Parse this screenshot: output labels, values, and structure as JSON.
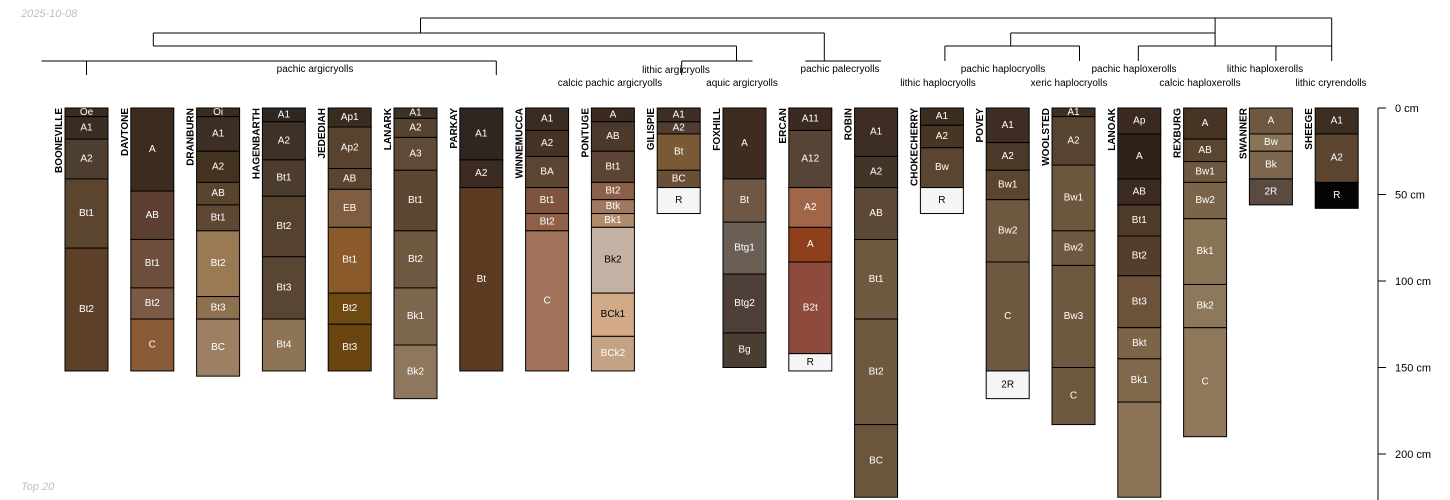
{
  "header": {
    "date": "2025-10-08"
  },
  "footer": {
    "label": "Top 20"
  },
  "depth_axis": [
    {
      "label": "0 cm",
      "depth": 0
    },
    {
      "label": "50 cm",
      "depth": 50
    },
    {
      "label": "100 cm",
      "depth": 100
    },
    {
      "label": "150 cm",
      "depth": 150
    },
    {
      "label": "200 cm",
      "depth": 200
    }
  ],
  "groups": [
    {
      "label": "pachic argicryolls",
      "first": 0,
      "last": 5
    },
    {
      "label": "calcic pachic argicryolls",
      "first": 6,
      "last": 8
    },
    {
      "label": "lithic argicryolls",
      "first": 9,
      "last": 9
    },
    {
      "label": "aquic argicryolls",
      "first": 10,
      "last": 10
    },
    {
      "label": "pachic palecryolls",
      "first": 11,
      "last": 12
    },
    {
      "label": "lithic haplocryolls",
      "first": 13,
      "last": 13
    },
    {
      "label": "pachic haplocryolls",
      "first": 14,
      "last": 14
    },
    {
      "label": "xeric haplocryolls",
      "first": 15,
      "last": 15
    },
    {
      "label": "pachic haploxerolls",
      "first": 16,
      "last": 16
    },
    {
      "label": "calcic haploxerolls",
      "first": 17,
      "last": 17
    },
    {
      "label": "lithic haploxerolls",
      "first": 18,
      "last": 18
    },
    {
      "label": "lithic cryrendolls",
      "first": 19,
      "last": 19
    }
  ],
  "profiles": [
    {
      "name": "BOONEVILLE",
      "horizons": [
        {
          "name": "Oe",
          "top": 0,
          "bottom": 5,
          "color": "#3a2b20"
        },
        {
          "name": "A1",
          "top": 5,
          "bottom": 18,
          "color": "#3b2d22"
        },
        {
          "name": "A2",
          "top": 18,
          "bottom": 41,
          "color": "#4d3e30"
        },
        {
          "name": "Bt1",
          "top": 41,
          "bottom": 81,
          "color": "#5b452e"
        },
        {
          "name": "Bt2",
          "top": 81,
          "bottom": 152,
          "color": "#5e3f28"
        }
      ]
    },
    {
      "name": "DAVTONE",
      "horizons": [
        {
          "name": "A",
          "top": 0,
          "bottom": 48,
          "color": "#3d2b1f"
        },
        {
          "name": "AB",
          "top": 48,
          "bottom": 76,
          "color": "#5c3f31"
        },
        {
          "name": "Bt1",
          "top": 76,
          "bottom": 104,
          "color": "#6e4e3c"
        },
        {
          "name": "Bt2",
          "top": 104,
          "bottom": 122,
          "color": "#7a5a45"
        },
        {
          "name": "C",
          "top": 122,
          "bottom": 152,
          "color": "#8b5a36"
        }
      ]
    },
    {
      "name": "DRANBURN",
      "horizons": [
        {
          "name": "Oi",
          "top": 0,
          "bottom": 5,
          "color": "#3b2c21"
        },
        {
          "name": "A1",
          "top": 5,
          "bottom": 25,
          "color": "#3d2f24"
        },
        {
          "name": "A2",
          "top": 25,
          "bottom": 43,
          "color": "#43321f"
        },
        {
          "name": "AB",
          "top": 43,
          "bottom": 56,
          "color": "#59452e"
        },
        {
          "name": "Bt1",
          "top": 56,
          "bottom": 71,
          "color": "#5e4831"
        },
        {
          "name": "Bt2",
          "top": 71,
          "bottom": 109,
          "color": "#9a7a55"
        },
        {
          "name": "Bt3",
          "top": 109,
          "bottom": 122,
          "color": "#8c7050"
        },
        {
          "name": "BC",
          "top": 122,
          "bottom": 155,
          "color": "#9d8064"
        }
      ]
    },
    {
      "name": "HAGENBARTH",
      "horizons": [
        {
          "name": "A1",
          "top": 0,
          "bottom": 8,
          "color": "#2f2722"
        },
        {
          "name": "A2",
          "top": 8,
          "bottom": 30,
          "color": "#3d3128"
        },
        {
          "name": "Bt1",
          "top": 30,
          "bottom": 51,
          "color": "#4c3d2e"
        },
        {
          "name": "Bt2",
          "top": 51,
          "bottom": 86,
          "color": "#55412f"
        },
        {
          "name": "Bt3",
          "top": 86,
          "bottom": 122,
          "color": "#594632"
        },
        {
          "name": "Bt4",
          "top": 122,
          "bottom": 152,
          "color": "#8d7456"
        }
      ]
    },
    {
      "name": "JEDEDIAH",
      "horizons": [
        {
          "name": "Ap1",
          "top": 0,
          "bottom": 11,
          "color": "#3b2c20"
        },
        {
          "name": "Ap2",
          "top": 11,
          "bottom": 35,
          "color": "#59432e"
        },
        {
          "name": "AB",
          "top": 35,
          "bottom": 47,
          "color": "#5b4530"
        },
        {
          "name": "EB",
          "top": 47,
          "bottom": 69,
          "color": "#7e5d40"
        },
        {
          "name": "Bt1",
          "top": 69,
          "bottom": 107,
          "color": "#8a5a2a"
        },
        {
          "name": "Bt2",
          "top": 107,
          "bottom": 125,
          "color": "#6e4a10"
        },
        {
          "name": "Bt3",
          "top": 125,
          "bottom": 152,
          "color": "#6b4510"
        }
      ]
    },
    {
      "name": "LANARK",
      "horizons": [
        {
          "name": "A1",
          "top": 0,
          "bottom": 6,
          "color": "#3d3024"
        },
        {
          "name": "A2",
          "top": 6,
          "bottom": 17,
          "color": "#55432f"
        },
        {
          "name": "A3",
          "top": 17,
          "bottom": 36,
          "color": "#5e4a36"
        },
        {
          "name": "Bt1",
          "top": 36,
          "bottom": 71,
          "color": "#5c4832"
        },
        {
          "name": "Bt2",
          "top": 71,
          "bottom": 104,
          "color": "#6e5840"
        },
        {
          "name": "Bk1",
          "top": 104,
          "bottom": 137,
          "color": "#7c664e"
        },
        {
          "name": "Bk2",
          "top": 137,
          "bottom": 168,
          "color": "#8e775c"
        }
      ]
    },
    {
      "name": "PARKAY",
      "horizons": [
        {
          "name": "A1",
          "top": 0,
          "bottom": 30,
          "color": "#2f2622"
        },
        {
          "name": "A2",
          "top": 30,
          "bottom": 46,
          "color": "#3b2b22"
        },
        {
          "name": "Bt",
          "top": 46,
          "bottom": 152,
          "color": "#5d3b22"
        }
      ]
    },
    {
      "name": "WINNEMUCCA",
      "horizons": [
        {
          "name": "A1",
          "top": 0,
          "bottom": 13,
          "color": "#3a2c22"
        },
        {
          "name": "A2",
          "top": 13,
          "bottom": 28,
          "color": "#453426"
        },
        {
          "name": "BA",
          "top": 28,
          "bottom": 46,
          "color": "#5c4432"
        },
        {
          "name": "Bt1",
          "top": 46,
          "bottom": 61,
          "color": "#7e5440"
        },
        {
          "name": "Bt2",
          "top": 61,
          "bottom": 71,
          "color": "#8e6048"
        },
        {
          "name": "C",
          "top": 71,
          "bottom": 152,
          "color": "#a0725a"
        }
      ]
    },
    {
      "name": "PONTUGE",
      "horizons": [
        {
          "name": "A",
          "top": 0,
          "bottom": 8,
          "color": "#3a2a20"
        },
        {
          "name": "AB",
          "top": 8,
          "bottom": 25,
          "color": "#4b3a2c"
        },
        {
          "name": "Bt1",
          "top": 25,
          "bottom": 43,
          "color": "#5b4433"
        },
        {
          "name": "Bt2",
          "top": 43,
          "bottom": 53,
          "color": "#8a6048"
        },
        {
          "name": "Btk",
          "top": 53,
          "bottom": 61,
          "color": "#a07860"
        },
        {
          "name": "Bk1",
          "top": 61,
          "bottom": 69,
          "color": "#b08a6a"
        },
        {
          "name": "Bk2",
          "top": 69,
          "bottom": 107,
          "color": "#c4b2a4"
        },
        {
          "name": "BCk1",
          "top": 107,
          "bottom": 132,
          "color": "#d3aa88"
        },
        {
          "name": "BCk2",
          "top": 132,
          "bottom": 152,
          "color": "#c4a284"
        }
      ]
    },
    {
      "name": "GILISPIE",
      "horizons": [
        {
          "name": "A1",
          "top": 0,
          "bottom": 8,
          "color": "#3d2f25"
        },
        {
          "name": "A2",
          "top": 8,
          "bottom": 15,
          "color": "#4f3e30"
        },
        {
          "name": "Bt",
          "top": 15,
          "bottom": 36,
          "color": "#7a5a34"
        },
        {
          "name": "BC",
          "top": 36,
          "bottom": 46,
          "color": "#6a4e36"
        },
        {
          "name": "R",
          "top": 46,
          "bottom": 61,
          "color": "#f5f5f5"
        }
      ]
    },
    {
      "name": "FOXHILL",
      "horizons": [
        {
          "name": "A",
          "top": 0,
          "bottom": 41,
          "color": "#3d2c1f"
        },
        {
          "name": "Bt",
          "top": 41,
          "bottom": 66,
          "color": "#6e5845"
        },
        {
          "name": "Btg1",
          "top": 66,
          "bottom": 96,
          "color": "#6b5e54"
        },
        {
          "name": "Btg2",
          "top": 96,
          "bottom": 130,
          "color": "#4e4038"
        },
        {
          "name": "Bg",
          "top": 130,
          "bottom": 150,
          "color": "#4a3d32"
        }
      ]
    },
    {
      "name": "ERCAN",
      "horizons": [
        {
          "name": "A11",
          "top": 0,
          "bottom": 13,
          "color": "#3a2a21"
        },
        {
          "name": "A12",
          "top": 13,
          "bottom": 46,
          "color": "#574437"
        },
        {
          "name": "A2",
          "top": 46,
          "bottom": 69,
          "color": "#a0664a"
        },
        {
          "name": "A",
          "top": 69,
          "bottom": 89,
          "color": "#8e3f1c"
        },
        {
          "name": "B2t",
          "top": 89,
          "bottom": 142,
          "color": "#8e4a3c"
        },
        {
          "name": "R",
          "top": 142,
          "bottom": 152,
          "color": "#f5f5f5"
        }
      ]
    },
    {
      "name": "ROBIN",
      "horizons": [
        {
          "name": "A1",
          "top": 0,
          "bottom": 28,
          "color": "#3d2d22"
        },
        {
          "name": "A2",
          "top": 28,
          "bottom": 46,
          "color": "#433428"
        },
        {
          "name": "AB",
          "top": 46,
          "bottom": 76,
          "color": "#5b4935"
        },
        {
          "name": "Bt1",
          "top": 76,
          "bottom": 122,
          "color": "#6e583f"
        },
        {
          "name": "Bt2",
          "top": 122,
          "bottom": 183,
          "color": "#6e583f"
        },
        {
          "name": "BC",
          "top": 183,
          "bottom": 225,
          "color": "#6b553d"
        }
      ]
    },
    {
      "name": "CHOKECHERRY",
      "horizons": [
        {
          "name": "A1",
          "top": 0,
          "bottom": 10,
          "color": "#3d2c20"
        },
        {
          "name": "A2",
          "top": 10,
          "bottom": 23,
          "color": "#483625"
        },
        {
          "name": "Bw",
          "top": 23,
          "bottom": 46,
          "color": "#5a4530"
        },
        {
          "name": "R",
          "top": 46,
          "bottom": 61,
          "color": "#f5f5f5"
        }
      ]
    },
    {
      "name": "POVEY",
      "horizons": [
        {
          "name": "A1",
          "top": 0,
          "bottom": 20,
          "color": "#3d2d22"
        },
        {
          "name": "A2",
          "top": 20,
          "bottom": 36,
          "color": "#4a3828"
        },
        {
          "name": "Bw1",
          "top": 36,
          "bottom": 53,
          "color": "#5a452f"
        },
        {
          "name": "Bw2",
          "top": 53,
          "bottom": 89,
          "color": "#6e5840"
        },
        {
          "name": "C",
          "top": 89,
          "bottom": 152,
          "color": "#6e583f"
        },
        {
          "name": "2R",
          "top": 152,
          "bottom": 168,
          "color": "#f5f5f5"
        }
      ]
    },
    {
      "name": "WOOLSTED",
      "horizons": [
        {
          "name": "A1",
          "top": 0,
          "bottom": 5,
          "color": "#3d2f23"
        },
        {
          "name": "A2",
          "top": 5,
          "bottom": 33,
          "color": "#574430"
        },
        {
          "name": "Bw1",
          "top": 33,
          "bottom": 71,
          "color": "#6b573e"
        },
        {
          "name": "Bw2",
          "top": 71,
          "bottom": 91,
          "color": "#6e583f"
        },
        {
          "name": "Bw3",
          "top": 91,
          "bottom": 150,
          "color": "#6e583f"
        },
        {
          "name": "C",
          "top": 150,
          "bottom": 183,
          "color": "#6e583f"
        }
      ]
    },
    {
      "name": "LANOAK",
      "horizons": [
        {
          "name": "Ap",
          "top": 0,
          "bottom": 15,
          "color": "#3a2a1f"
        },
        {
          "name": "A",
          "top": 15,
          "bottom": 41,
          "color": "#2f2218"
        },
        {
          "name": "AB",
          "top": 41,
          "bottom": 56,
          "color": "#3b2b20"
        },
        {
          "name": "Bt1",
          "top": 56,
          "bottom": 74,
          "color": "#4e3a28"
        },
        {
          "name": "Bt2",
          "top": 74,
          "bottom": 97,
          "color": "#543e2b"
        },
        {
          "name": "Bt3",
          "top": 97,
          "bottom": 127,
          "color": "#6b5238"
        },
        {
          "name": "Bkt",
          "top": 127,
          "bottom": 145,
          "color": "#7c6448"
        },
        {
          "name": "Bk1",
          "top": 145,
          "bottom": 170,
          "color": "#80684c"
        },
        {
          "name": "",
          "top": 170,
          "bottom": 225,
          "color": "#8d7458"
        }
      ]
    },
    {
      "name": "REXBURG",
      "horizons": [
        {
          "name": "A",
          "top": 0,
          "bottom": 18,
          "color": "#463424"
        },
        {
          "name": "AB",
          "top": 18,
          "bottom": 31,
          "color": "#5a4530"
        },
        {
          "name": "Bw1",
          "top": 31,
          "bottom": 43,
          "color": "#6e5840"
        },
        {
          "name": "Bw2",
          "top": 43,
          "bottom": 64,
          "color": "#7a644a"
        },
        {
          "name": "Bk1",
          "top": 64,
          "bottom": 102,
          "color": "#8a7458"
        },
        {
          "name": "Bk2",
          "top": 102,
          "bottom": 127,
          "color": "#8e785c"
        },
        {
          "name": "C",
          "top": 127,
          "bottom": 190,
          "color": "#8e775a"
        }
      ]
    },
    {
      "name": "SWANNER",
      "horizons": [
        {
          "name": "A",
          "top": 0,
          "bottom": 15,
          "color": "#6e583f"
        },
        {
          "name": "Bw",
          "top": 15,
          "bottom": 25,
          "color": "#8a7458"
        },
        {
          "name": "Bk",
          "top": 25,
          "bottom": 41,
          "color": "#7c664e"
        },
        {
          "name": "2R",
          "top": 41,
          "bottom": 56,
          "color": "#5a4a40"
        }
      ]
    },
    {
      "name": "SHEEGE",
      "horizons": [
        {
          "name": "A1",
          "top": 0,
          "bottom": 15,
          "color": "#3d2e22"
        },
        {
          "name": "A2",
          "top": 15,
          "bottom": 43,
          "color": "#5c4530"
        },
        {
          "name": "R",
          "top": 43,
          "bottom": 58,
          "color": "#050505"
        }
      ]
    }
  ]
}
